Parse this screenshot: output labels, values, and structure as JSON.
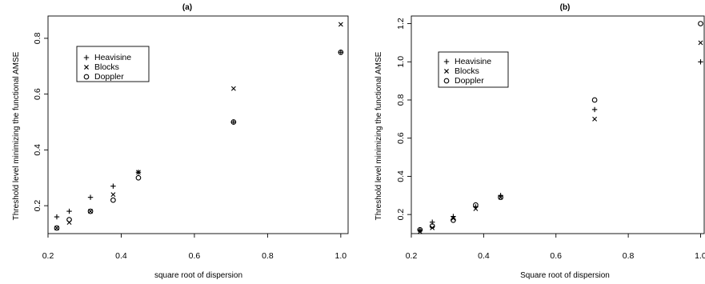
{
  "chart_data": [
    {
      "type": "scatter",
      "title": "(a)",
      "xlabel": "square root of dispersion",
      "ylabel": "Threshold level minimizing the functional AMSE",
      "xlim": [
        0.2,
        1.02
      ],
      "ylim": [
        0.1,
        0.88
      ],
      "xticks": [
        "0.2",
        "0.4",
        "0.6",
        "0.8",
        "1.0"
      ],
      "xtick_values": [
        0.2,
        0.4,
        0.6,
        0.8,
        1.0
      ],
      "yticks": [
        "0.2",
        "0.4",
        "0.6",
        "0.8"
      ],
      "ytick_values": [
        0.2,
        0.4,
        0.6,
        0.8
      ],
      "grid": false,
      "legend_position": "top-left",
      "series": [
        {
          "name": "Heavisine",
          "marker": "plus",
          "x": [
            0.224,
            0.258,
            0.316,
            0.378,
            0.447,
            0.707,
            1.0
          ],
          "y": [
            0.16,
            0.18,
            0.23,
            0.27,
            0.32,
            0.5,
            0.75
          ]
        },
        {
          "name": "Blocks",
          "marker": "cross",
          "x": [
            0.224,
            0.258,
            0.316,
            0.378,
            0.447,
            0.707,
            1.0
          ],
          "y": [
            0.12,
            0.14,
            0.18,
            0.24,
            0.32,
            0.62,
            0.85
          ]
        },
        {
          "name": "Doppler",
          "marker": "circle",
          "x": [
            0.224,
            0.258,
            0.316,
            0.378,
            0.447,
            0.707,
            1.0
          ],
          "y": [
            0.12,
            0.15,
            0.18,
            0.22,
            0.3,
            0.5,
            0.75
          ]
        }
      ]
    },
    {
      "type": "scatter",
      "title": "(b)",
      "xlabel": "Square root of dispersion",
      "ylabel": "Threshold level minimizing the functional AMSE",
      "xlim": [
        0.2,
        1.01
      ],
      "ylim": [
        0.1,
        1.24
      ],
      "xticks": [
        "0.2",
        "0.4",
        "0.6",
        "0.8",
        "1.0"
      ],
      "xtick_values": [
        0.2,
        0.4,
        0.6,
        0.8,
        1.0
      ],
      "yticks": [
        "0.2",
        "0.4",
        "0.6",
        "0.8",
        "1.0",
        "1.2"
      ],
      "ytick_values": [
        0.2,
        0.4,
        0.6,
        0.8,
        1.0,
        1.2
      ],
      "grid": false,
      "legend_position": "top-left",
      "series": [
        {
          "name": "Heavisine",
          "marker": "plus",
          "x": [
            0.224,
            0.258,
            0.316,
            0.378,
            0.447,
            0.707,
            1.0
          ],
          "y": [
            0.12,
            0.16,
            0.19,
            0.24,
            0.3,
            0.75,
            1.0
          ]
        },
        {
          "name": "Blocks",
          "marker": "cross",
          "x": [
            0.224,
            0.258,
            0.316,
            0.378,
            0.447,
            0.707,
            1.0
          ],
          "y": [
            0.11,
            0.13,
            0.18,
            0.23,
            0.29,
            0.7,
            1.1
          ]
        },
        {
          "name": "Doppler",
          "marker": "circle",
          "x": [
            0.224,
            0.258,
            0.316,
            0.378,
            0.447,
            0.707,
            1.0
          ],
          "y": [
            0.12,
            0.14,
            0.17,
            0.25,
            0.29,
            0.8,
            1.2
          ]
        }
      ]
    }
  ]
}
